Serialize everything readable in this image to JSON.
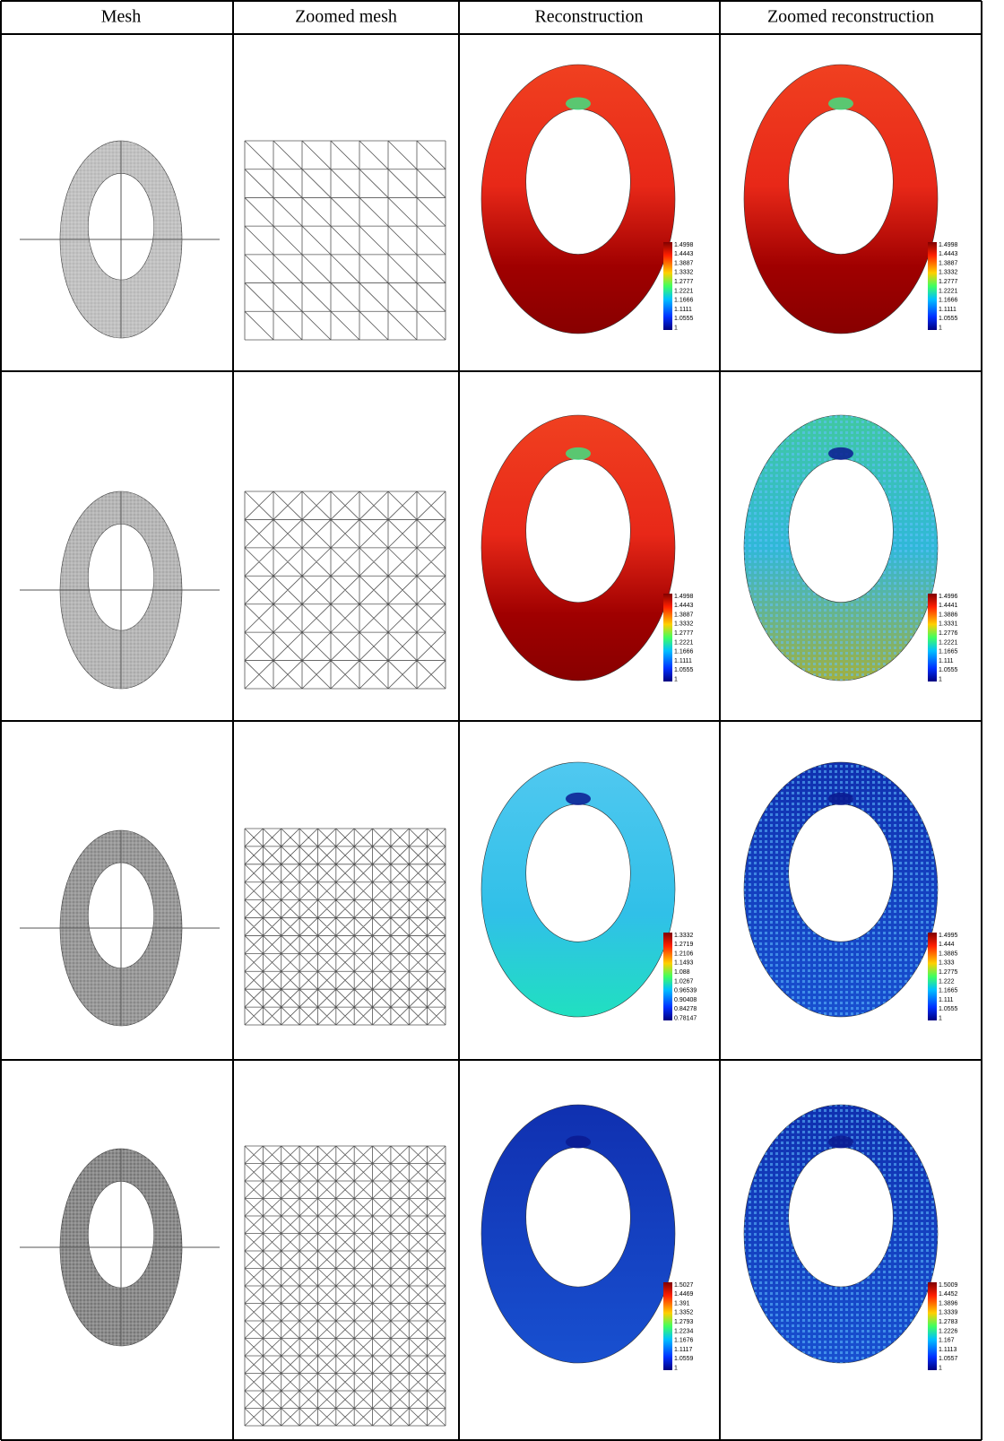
{
  "table": {
    "headers": [
      "Mesh",
      "Zoomed mesh",
      "Reconstruction",
      "Zoomed reconstruction"
    ],
    "rows": [
      {
        "reconstruction_colorbar": [
          "1.4998",
          "1.4443",
          "1.3887",
          "1.3332",
          "1.2777",
          "1.2221",
          "1.1666",
          "1.1111",
          "1.0555",
          "1"
        ],
        "zoomed_colorbar": [
          "1.4998",
          "1.4443",
          "1.3887",
          "1.3332",
          "1.2777",
          "1.2221",
          "1.1666",
          "1.1111",
          "1.0555",
          "1"
        ]
      },
      {
        "reconstruction_colorbar": [
          "1.4998",
          "1.4443",
          "1.3887",
          "1.3332",
          "1.2777",
          "1.2221",
          "1.1666",
          "1.1111",
          "1.0555",
          "1"
        ],
        "zoomed_colorbar": [
          "1.4996",
          "1.4441",
          "1.3886",
          "1.3331",
          "1.2776",
          "1.2221",
          "1.1665",
          "1.111",
          "1.0555",
          "1"
        ]
      },
      {
        "reconstruction_colorbar": [
          "1.3332",
          "1.2719",
          "1.2106",
          "1.1493",
          "1.088",
          "1.0267",
          "0.96539",
          "0.90408",
          "0.84278",
          "0.78147"
        ],
        "zoomed_colorbar": [
          "1.4995",
          "1.444",
          "1.3885",
          "1.333",
          "1.2775",
          "1.222",
          "1.1665",
          "1.111",
          "1.0555",
          "1"
        ]
      },
      {
        "reconstruction_colorbar": [
          "1.5027",
          "1.4469",
          "1.391",
          "1.3352",
          "1.2793",
          "1.2234",
          "1.1676",
          "1.1117",
          "1.0559",
          "1"
        ],
        "zoomed_colorbar": [
          "1.5009",
          "1.4452",
          "1.3896",
          "1.3339",
          "1.2783",
          "1.2226",
          "1.167",
          "1.1113",
          "1.0557",
          "1"
        ]
      }
    ]
  }
}
